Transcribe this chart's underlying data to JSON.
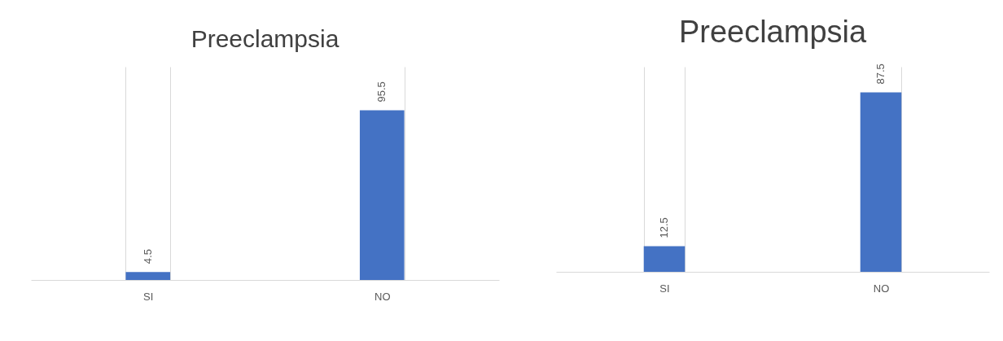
{
  "chart_data": [
    {
      "type": "bar",
      "title": "Preeclampsia",
      "categories": [
        "SI",
        "NO"
      ],
      "values": [
        4.5,
        95.5
      ],
      "color": "#4472c4",
      "ylim": [
        0,
        120
      ],
      "data_labels": true,
      "grid": "x",
      "tick_labels": "x"
    },
    {
      "type": "bar",
      "title": "Preeclampsia",
      "categories": [
        "SI",
        "NO"
      ],
      "values": [
        12.5,
        87.5
      ],
      "color": "#4472c4",
      "ylim": [
        0,
        100
      ],
      "data_labels": true,
      "grid": "x",
      "tick_labels": "x"
    }
  ]
}
